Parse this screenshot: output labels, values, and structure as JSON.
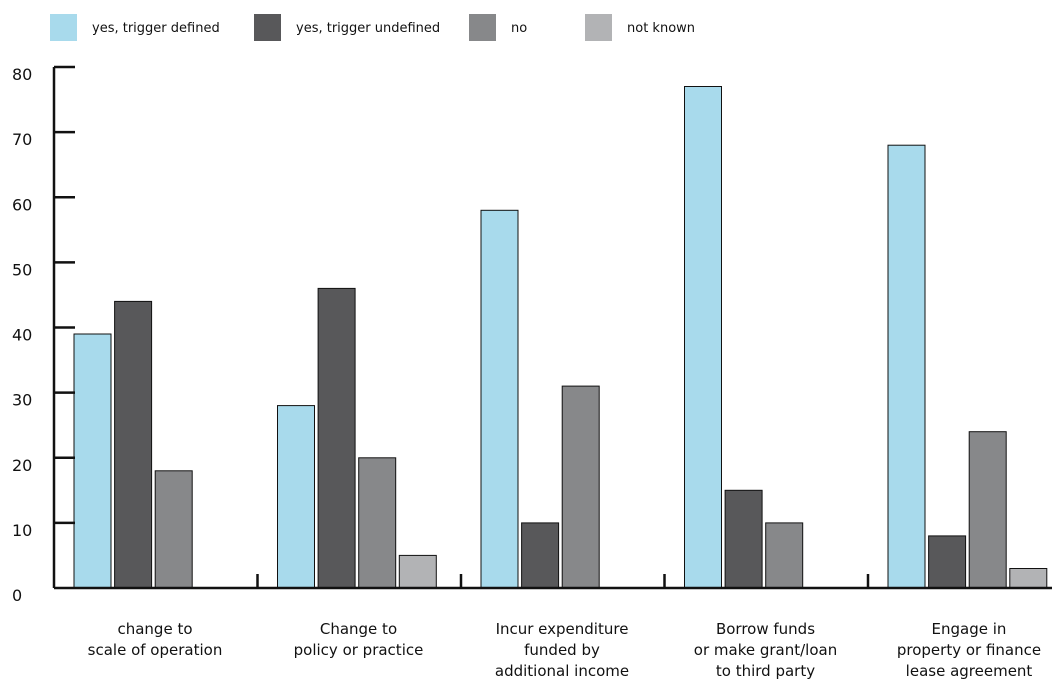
{
  "chart_data": {
    "type": "bar",
    "title": "",
    "xlabel": "",
    "ylabel": "",
    "ylim": [
      0,
      80
    ],
    "yticks": [
      0,
      10,
      20,
      30,
      40,
      50,
      60,
      70,
      80
    ],
    "grid": false,
    "legend_position": "top-left",
    "categories": [
      [
        "change to",
        "scale of operation"
      ],
      [
        "Change to",
        "policy or practice"
      ],
      [
        "Incur expenditure",
        "funded by",
        "additional income"
      ],
      [
        "Borrow funds",
        "or make grant/loan",
        "to third party"
      ],
      [
        "Engage in",
        "property or finance",
        "lease agreement"
      ]
    ],
    "series": [
      {
        "name": "yes, trigger defined",
        "color": "#a8daec",
        "values": [
          39,
          28,
          58,
          77,
          68
        ]
      },
      {
        "name": "yes, trigger undefined",
        "color": "#58585a",
        "values": [
          44,
          46,
          10,
          15,
          8
        ]
      },
      {
        "name": "no",
        "color": "#87888a",
        "values": [
          18,
          20,
          31,
          10,
          24
        ]
      },
      {
        "name": "not known",
        "color": "#b2b3b5",
        "values": [
          0,
          5,
          0,
          0,
          3
        ]
      }
    ]
  }
}
